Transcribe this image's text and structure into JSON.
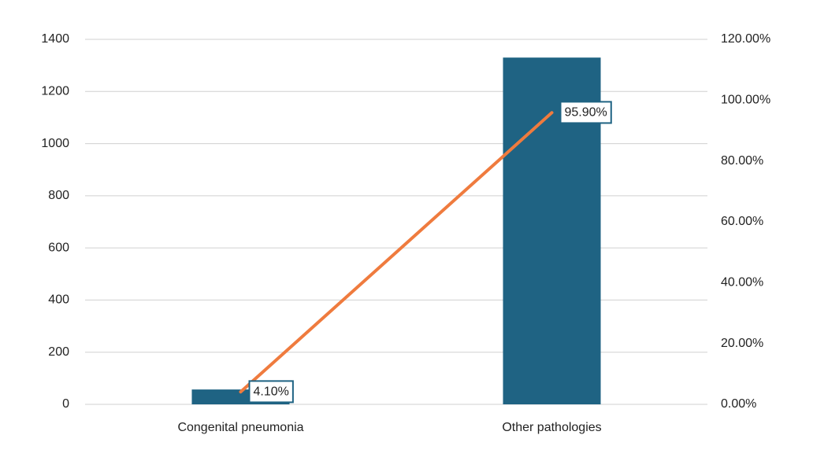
{
  "chart_data": {
    "type": "bar-line",
    "categories": [
      "Congenital pneumonia",
      "Other pathologies"
    ],
    "series": [
      {
        "type": "bar",
        "color": "#1f6383",
        "values": [
          57,
          1330
        ]
      },
      {
        "type": "line",
        "axis": "y2",
        "color": "#ef7b3e",
        "values": [
          4.1,
          95.9
        ],
        "value_labels": [
          "4.10%",
          "95.90%"
        ]
      }
    ],
    "ylim": [
      0,
      1400
    ],
    "yticks": [
      0,
      200,
      400,
      600,
      800,
      1000,
      1200,
      1400
    ],
    "y2lim": [
      0,
      120
    ],
    "y2ticks": [
      {
        "value": 0,
        "label": "0.00%"
      },
      {
        "value": 20,
        "label": "20.00%"
      },
      {
        "value": 40,
        "label": "40.00%"
      },
      {
        "value": 60,
        "label": "60.00%"
      },
      {
        "value": 80,
        "label": "80.00%"
      },
      {
        "value": 100,
        "label": "100.00%"
      },
      {
        "value": 120,
        "label": "120.00%"
      }
    ],
    "grid": true
  }
}
